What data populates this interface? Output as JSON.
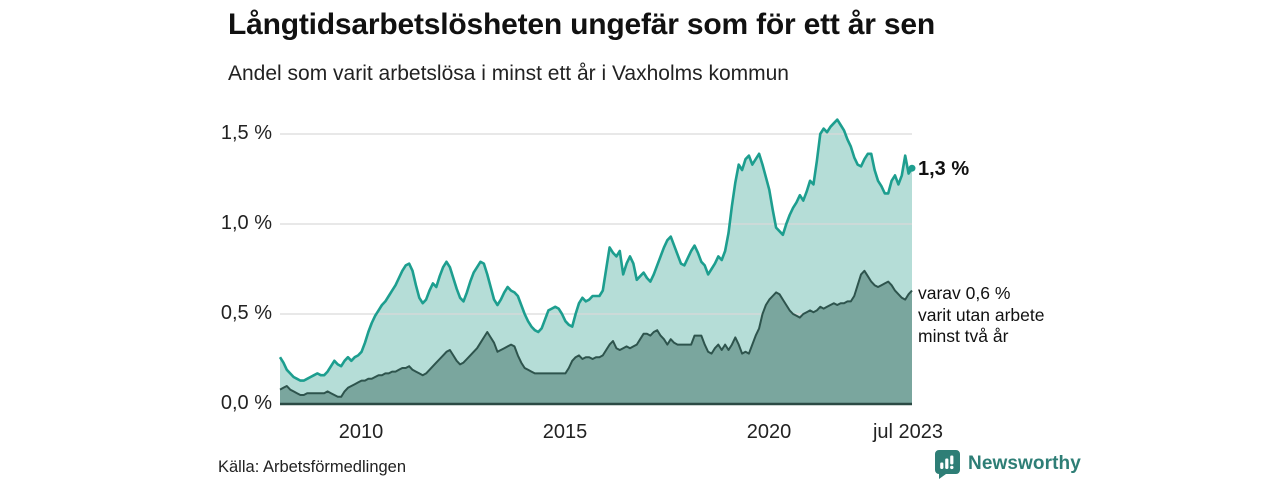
{
  "page": {
    "title": "Långtidsarbetslösheten ungefär som för ett år sen",
    "subtitle": "Andel som varit arbetslösa i minst ett år i Vaxholms kommun"
  },
  "footer": {
    "source": "Källa: Arbetsförmedlingen",
    "brand_name": "Newsworthy",
    "brand_color": "#2e7e76"
  },
  "chart_data": {
    "type": "area",
    "unit": "%",
    "x_start": "2008-01",
    "x_end": "2023-07",
    "frequency": "monthly",
    "ylim": [
      0,
      1.6
    ],
    "grid": true,
    "grid_color": "#d9d9d9",
    "baseline_color": "#2b4a44",
    "y_axis": {
      "ticks_top_to_bottom": [
        "1,5 %",
        "1,0 %",
        "0,5 %",
        "0,0 %"
      ],
      "grid_values_pct": [
        0.5,
        1.0,
        1.5
      ]
    },
    "x_axis": {
      "ticks": [
        "2010",
        "2015",
        "2020",
        "jul 2023"
      ]
    },
    "annotations": {
      "last_value_label": "1,3 %",
      "side_note_lines": [
        "varav 0,6 %",
        "varit utan arbete",
        "minst två år"
      ]
    },
    "series": [
      {
        "name": "Andel som varit arbetslösa i minst ett år",
        "line_color": "#1d9e8f",
        "fill_color": "#b5ddd7",
        "last_value_pct": 1.3,
        "values": [
          0.26,
          0.23,
          0.19,
          0.17,
          0.15,
          0.14,
          0.13,
          0.13,
          0.14,
          0.15,
          0.16,
          0.17,
          0.16,
          0.16,
          0.18,
          0.21,
          0.24,
          0.22,
          0.21,
          0.24,
          0.26,
          0.24,
          0.26,
          0.27,
          0.29,
          0.34,
          0.4,
          0.45,
          0.49,
          0.52,
          0.55,
          0.57,
          0.6,
          0.63,
          0.66,
          0.7,
          0.74,
          0.77,
          0.78,
          0.74,
          0.66,
          0.59,
          0.56,
          0.58,
          0.63,
          0.67,
          0.65,
          0.71,
          0.76,
          0.79,
          0.76,
          0.7,
          0.64,
          0.59,
          0.57,
          0.62,
          0.68,
          0.73,
          0.76,
          0.79,
          0.78,
          0.72,
          0.65,
          0.58,
          0.55,
          0.58,
          0.62,
          0.65,
          0.63,
          0.62,
          0.6,
          0.55,
          0.5,
          0.46,
          0.43,
          0.41,
          0.4,
          0.42,
          0.47,
          0.52,
          0.53,
          0.54,
          0.53,
          0.5,
          0.46,
          0.44,
          0.43,
          0.5,
          0.56,
          0.59,
          0.57,
          0.58,
          0.6,
          0.6,
          0.6,
          0.63,
          0.75,
          0.87,
          0.84,
          0.82,
          0.85,
          0.72,
          0.78,
          0.82,
          0.78,
          0.69,
          0.71,
          0.73,
          0.7,
          0.68,
          0.72,
          0.77,
          0.82,
          0.87,
          0.91,
          0.93,
          0.88,
          0.83,
          0.78,
          0.77,
          0.81,
          0.85,
          0.88,
          0.84,
          0.79,
          0.77,
          0.72,
          0.75,
          0.78,
          0.82,
          0.8,
          0.85,
          0.95,
          1.1,
          1.23,
          1.33,
          1.3,
          1.36,
          1.38,
          1.33,
          1.36,
          1.39,
          1.33,
          1.26,
          1.19,
          1.08,
          0.98,
          0.96,
          0.94,
          1.0,
          1.05,
          1.09,
          1.12,
          1.16,
          1.13,
          1.18,
          1.24,
          1.22,
          1.35,
          1.5,
          1.53,
          1.51,
          1.54,
          1.56,
          1.58,
          1.55,
          1.52,
          1.47,
          1.43,
          1.37,
          1.33,
          1.32,
          1.36,
          1.39,
          1.39,
          1.3,
          1.24,
          1.21,
          1.17,
          1.17,
          1.24,
          1.27,
          1.22,
          1.27,
          1.38,
          1.28,
          1.31
        ]
      },
      {
        "name": "varav utan arbete minst två år",
        "line_color": "#2e544d",
        "fill_color": "#7aa69e",
        "last_value_pct": 0.6,
        "values": [
          0.08,
          0.09,
          0.1,
          0.08,
          0.07,
          0.06,
          0.05,
          0.05,
          0.06,
          0.06,
          0.06,
          0.06,
          0.06,
          0.06,
          0.07,
          0.06,
          0.05,
          0.04,
          0.04,
          0.07,
          0.09,
          0.1,
          0.11,
          0.12,
          0.13,
          0.13,
          0.14,
          0.14,
          0.15,
          0.16,
          0.16,
          0.17,
          0.17,
          0.18,
          0.18,
          0.19,
          0.2,
          0.2,
          0.21,
          0.19,
          0.18,
          0.17,
          0.16,
          0.17,
          0.19,
          0.21,
          0.23,
          0.25,
          0.27,
          0.29,
          0.3,
          0.27,
          0.24,
          0.22,
          0.23,
          0.25,
          0.27,
          0.29,
          0.31,
          0.34,
          0.37,
          0.4,
          0.37,
          0.34,
          0.29,
          0.3,
          0.31,
          0.32,
          0.33,
          0.32,
          0.27,
          0.23,
          0.2,
          0.19,
          0.18,
          0.17,
          0.17,
          0.17,
          0.17,
          0.17,
          0.17,
          0.17,
          0.17,
          0.17,
          0.17,
          0.2,
          0.24,
          0.26,
          0.27,
          0.25,
          0.26,
          0.26,
          0.25,
          0.26,
          0.26,
          0.27,
          0.3,
          0.33,
          0.35,
          0.31,
          0.3,
          0.31,
          0.32,
          0.31,
          0.32,
          0.33,
          0.36,
          0.39,
          0.39,
          0.38,
          0.4,
          0.41,
          0.38,
          0.36,
          0.33,
          0.36,
          0.34,
          0.33,
          0.33,
          0.33,
          0.33,
          0.33,
          0.38,
          0.38,
          0.38,
          0.33,
          0.29,
          0.28,
          0.31,
          0.33,
          0.3,
          0.33,
          0.3,
          0.33,
          0.37,
          0.33,
          0.28,
          0.29,
          0.28,
          0.33,
          0.38,
          0.42,
          0.5,
          0.55,
          0.58,
          0.6,
          0.62,
          0.61,
          0.58,
          0.55,
          0.52,
          0.5,
          0.49,
          0.48,
          0.5,
          0.51,
          0.52,
          0.51,
          0.52,
          0.54,
          0.53,
          0.54,
          0.55,
          0.56,
          0.55,
          0.56,
          0.56,
          0.57,
          0.57,
          0.6,
          0.66,
          0.72,
          0.74,
          0.71,
          0.68,
          0.66,
          0.65,
          0.66,
          0.67,
          0.68,
          0.66,
          0.63,
          0.61,
          0.59,
          0.58,
          0.61,
          0.63
        ]
      }
    ]
  }
}
